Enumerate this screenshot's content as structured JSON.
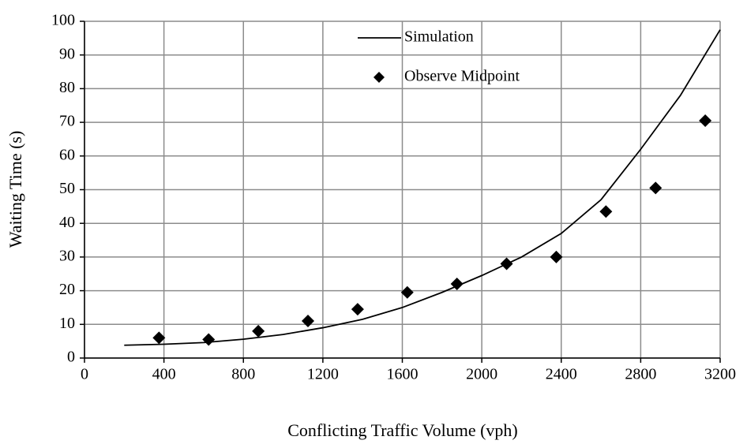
{
  "chart_data": {
    "type": "scatter",
    "x_label": "Conflicting Traffic Volume (vph)",
    "y_label": "Waiting Time (s)",
    "xlim": [
      0,
      3200
    ],
    "xticks": [
      0,
      400,
      800,
      1200,
      1600,
      2000,
      2400,
      2800,
      3200
    ],
    "ylim": [
      0,
      100
    ],
    "yticks": [
      0,
      10,
      20,
      30,
      40,
      50,
      60,
      70,
      80,
      90,
      100
    ],
    "grid": true,
    "legend": "top",
    "series": [
      {
        "name": "Simulation",
        "type": "line",
        "color": "#000000",
        "x": [
          200,
          400,
          600,
          800,
          1000,
          1200,
          1400,
          1600,
          1800,
          2000,
          2200,
          2400,
          2600,
          2800,
          3000,
          3200
        ],
        "values": [
          3.8,
          4.1,
          4.6,
          5.6,
          7,
          9,
          11.5,
          15,
          19.5,
          24.5,
          30,
          37,
          47,
          62,
          78,
          97.5
        ]
      },
      {
        "name": "Observe Midpoint",
        "type": "scatter",
        "color": "#000000",
        "x": [
          375,
          625,
          875,
          1125,
          1375,
          1625,
          1875,
          2125,
          2375,
          2625,
          2875,
          3125
        ],
        "values": [
          6,
          5.5,
          8,
          11,
          14.5,
          19.5,
          22,
          28,
          30,
          43.5,
          50.5,
          70.5
        ]
      }
    ]
  }
}
